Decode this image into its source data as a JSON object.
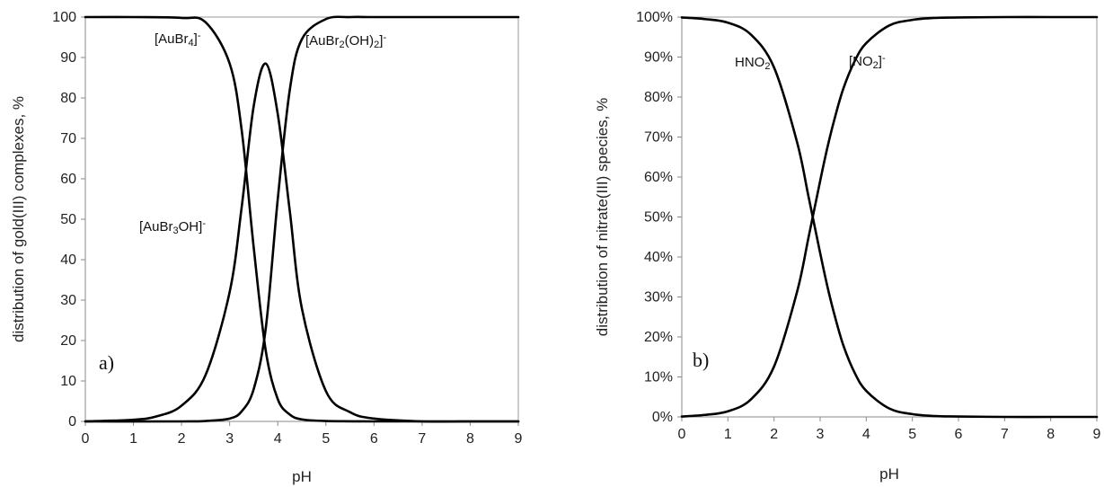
{
  "chart_data": [
    {
      "type": "line",
      "panel_label": "a)",
      "xlabel": "pH",
      "ylabel": "distribution of gold(III) complexes, %",
      "xlim": [
        0,
        9
      ],
      "ylim": [
        0,
        100
      ],
      "x_ticks": [
        "0",
        "1",
        "2",
        "3",
        "4",
        "5",
        "6",
        "7",
        "8",
        "9"
      ],
      "y_ticks": [
        "0",
        "10",
        "20",
        "30",
        "40",
        "50",
        "60",
        "70",
        "80",
        "90",
        "100"
      ],
      "grid": false,
      "series": [
        {
          "name": "[AuBr4]-",
          "label_parts": [
            [
              "[AuBr",
              "n"
            ],
            [
              "4",
              "sub"
            ],
            [
              "]",
              "n"
            ],
            [
              "-",
              "sup"
            ]
          ],
          "x": [
            0,
            1,
            2,
            2.5,
            3,
            3.25,
            3.5,
            3.75,
            4,
            4.25,
            4.5,
            5,
            6,
            7,
            8,
            9
          ],
          "values": [
            100,
            100,
            99.8,
            98.7,
            88.5,
            72,
            43,
            17.5,
            5.5,
            1.7,
            0.5,
            0.1,
            0,
            0,
            0,
            0
          ]
        },
        {
          "name": "[AuBr3OH]-",
          "label_parts": [
            [
              "[AuBr",
              "n"
            ],
            [
              "3",
              "sub"
            ],
            [
              "OH]",
              "n"
            ],
            [
              "-",
              "sup"
            ]
          ],
          "x": [
            0,
            1,
            1.5,
            2,
            2.5,
            3,
            3.25,
            3.5,
            3.75,
            4,
            4.25,
            4.5,
            5,
            5.5,
            6,
            7,
            8,
            9
          ],
          "values": [
            0,
            0.4,
            1.3,
            3.9,
            11.5,
            32,
            53,
            78,
            88.5,
            76,
            52,
            28,
            7.5,
            2.3,
            0.7,
            0,
            0,
            0
          ]
        },
        {
          "name": "[AuBr2(OH)2]-",
          "label_parts": [
            [
              "[AuBr",
              "n"
            ],
            [
              "2",
              "sub"
            ],
            [
              "(OH)",
              "n"
            ],
            [
              "2",
              "sub"
            ],
            [
              "]",
              "n"
            ],
            [
              "-",
              "sup"
            ]
          ],
          "x": [
            0,
            2,
            2.5,
            3,
            3.25,
            3.5,
            3.75,
            4,
            4.25,
            4.5,
            5,
            5.5,
            6,
            7,
            8,
            9
          ],
          "values": [
            0,
            0,
            0.1,
            0.7,
            2.5,
            8,
            23,
            55,
            82,
            94.5,
            99.5,
            100,
            100,
            100,
            100,
            100
          ]
        }
      ]
    },
    {
      "type": "line",
      "panel_label": "b)",
      "xlabel": "pH",
      "ylabel": "distribution of nitrate(III) species, %",
      "xlim": [
        0,
        9
      ],
      "ylim": [
        0,
        100
      ],
      "x_ticks": [
        "0",
        "1",
        "2",
        "3",
        "4",
        "5",
        "6",
        "7",
        "8",
        "9"
      ],
      "y_ticks": [
        "0%",
        "10%",
        "20%",
        "30%",
        "40%",
        "50%",
        "60%",
        "70%",
        "80%",
        "90%",
        "100%"
      ],
      "grid": false,
      "series": [
        {
          "name": "HNO2",
          "label_parts": [
            [
              "HNO",
              "n"
            ],
            [
              "2",
              "sub"
            ]
          ],
          "x": [
            0,
            0.5,
            1,
            1.5,
            2,
            2.5,
            2.75,
            3,
            3.15,
            3.3,
            3.5,
            3.75,
            4,
            4.5,
            5,
            5.5,
            6,
            7,
            8,
            9
          ],
          "values": [
            99.9,
            99.5,
            98.6,
            95.6,
            87.4,
            68.7,
            55,
            41,
            33,
            26,
            18,
            11,
            6.5,
            2.1,
            0.7,
            0.2,
            0.1,
            0,
            0,
            0
          ]
        },
        {
          "name": "[NO2]-",
          "label_parts": [
            [
              "[NO",
              "n"
            ],
            [
              "2",
              "sub"
            ],
            [
              "]",
              "n"
            ],
            [
              "-",
              "sup"
            ]
          ],
          "x": [
            0,
            0.5,
            1,
            1.5,
            2,
            2.5,
            2.75,
            3,
            3.15,
            3.3,
            3.5,
            3.75,
            4,
            4.5,
            5,
            5.5,
            6,
            7,
            8,
            9
          ],
          "values": [
            0.1,
            0.5,
            1.4,
            4.4,
            12.6,
            31.3,
            45,
            59,
            67,
            74,
            82,
            89,
            93.5,
            97.9,
            99.3,
            99.8,
            99.9,
            100,
            100,
            100
          ]
        }
      ]
    }
  ]
}
